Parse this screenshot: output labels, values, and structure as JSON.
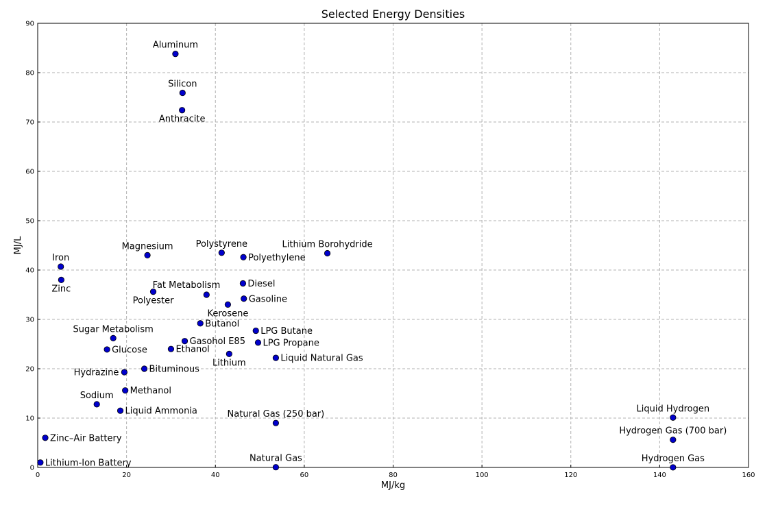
{
  "chart_data": {
    "type": "scatter",
    "title": "Selected Energy Densities",
    "xlabel": "MJ/kg",
    "ylabel": "MJ/L",
    "xlim": [
      0,
      160
    ],
    "ylim": [
      0,
      90
    ],
    "xticks": [
      0,
      20,
      40,
      60,
      80,
      100,
      120,
      140,
      160
    ],
    "yticks": [
      0,
      10,
      20,
      30,
      40,
      50,
      60,
      70,
      80,
      90
    ],
    "grid": true,
    "point_color": "#0000cc",
    "points": [
      {
        "label": "Aluminum",
        "x": 31.0,
        "y": 83.8,
        "label_pos": "above"
      },
      {
        "label": "Silicon",
        "x": 32.6,
        "y": 75.9,
        "label_pos": "above"
      },
      {
        "label": "Anthracite",
        "x": 32.5,
        "y": 72.4,
        "label_pos": "below"
      },
      {
        "label": "Iron",
        "x": 5.2,
        "y": 40.7,
        "label_pos": "above"
      },
      {
        "label": "Zinc",
        "x": 5.3,
        "y": 38.0,
        "label_pos": "below"
      },
      {
        "label": "Magnesium",
        "x": 24.7,
        "y": 43.0,
        "label_pos": "above"
      },
      {
        "label": "Polystyrene",
        "x": 41.4,
        "y": 43.5,
        "label_pos": "above"
      },
      {
        "label": "Polyethylene",
        "x": 46.3,
        "y": 42.6,
        "label_pos": "right"
      },
      {
        "label": "Lithium Borohydride",
        "x": 65.2,
        "y": 43.4,
        "label_pos": "above"
      },
      {
        "label": "Diesel",
        "x": 46.2,
        "y": 37.3,
        "label_pos": "right"
      },
      {
        "label": "Fat Metabolism",
        "x": 38.0,
        "y": 35.0,
        "label_pos": "upper-left"
      },
      {
        "label": "Polyester",
        "x": 26.0,
        "y": 35.6,
        "label_pos": "below"
      },
      {
        "label": "Gasoline",
        "x": 46.4,
        "y": 34.2,
        "label_pos": "right"
      },
      {
        "label": "Kerosene",
        "x": 42.8,
        "y": 33.0,
        "label_pos": "below"
      },
      {
        "label": "Butanol",
        "x": 36.6,
        "y": 29.2,
        "label_pos": "right"
      },
      {
        "label": "Sugar Metabolism",
        "x": 17.0,
        "y": 26.2,
        "label_pos": "above"
      },
      {
        "label": "LPG Butane",
        "x": 49.1,
        "y": 27.7,
        "label_pos": "right"
      },
      {
        "label": "Gasohol E85",
        "x": 33.1,
        "y": 25.6,
        "label_pos": "right"
      },
      {
        "label": "LPG Propane",
        "x": 49.6,
        "y": 25.3,
        "label_pos": "right"
      },
      {
        "label": "Glucose",
        "x": 15.6,
        "y": 23.9,
        "label_pos": "right"
      },
      {
        "label": "Ethanol",
        "x": 30.0,
        "y": 24.0,
        "label_pos": "right"
      },
      {
        "label": "Lithium",
        "x": 43.1,
        "y": 23.0,
        "label_pos": "below"
      },
      {
        "label": "Liquid Natural Gas",
        "x": 53.6,
        "y": 22.2,
        "label_pos": "right"
      },
      {
        "label": "Hydrazine",
        "x": 19.5,
        "y": 19.3,
        "label_pos": "left"
      },
      {
        "label": "Bituminous",
        "x": 24.0,
        "y": 20.0,
        "label_pos": "right"
      },
      {
        "label": "Methanol",
        "x": 19.7,
        "y": 15.6,
        "label_pos": "right"
      },
      {
        "label": "Sodium",
        "x": 13.3,
        "y": 12.8,
        "label_pos": "above"
      },
      {
        "label": "Liquid Ammonia",
        "x": 18.6,
        "y": 11.5,
        "label_pos": "right"
      },
      {
        "label": "Natural Gas (250 bar)",
        "x": 53.6,
        "y": 9.0,
        "label_pos": "above"
      },
      {
        "label": "Liquid Hydrogen",
        "x": 143.0,
        "y": 10.1,
        "label_pos": "above"
      },
      {
        "label": "Hydrogen Gas (700 bar)",
        "x": 143.0,
        "y": 5.6,
        "label_pos": "above"
      },
      {
        "label": "Zinc–Air Battery",
        "x": 1.7,
        "y": 6.0,
        "label_pos": "right"
      },
      {
        "label": "Lithium-Ion Battery",
        "x": 0.6,
        "y": 1.0,
        "label_pos": "right"
      },
      {
        "label": "Natural Gas",
        "x": 53.6,
        "y": 0.04,
        "label_pos": "above"
      },
      {
        "label": "Hydrogen Gas",
        "x": 143.0,
        "y": 0.01,
        "label_pos": "above"
      }
    ]
  }
}
